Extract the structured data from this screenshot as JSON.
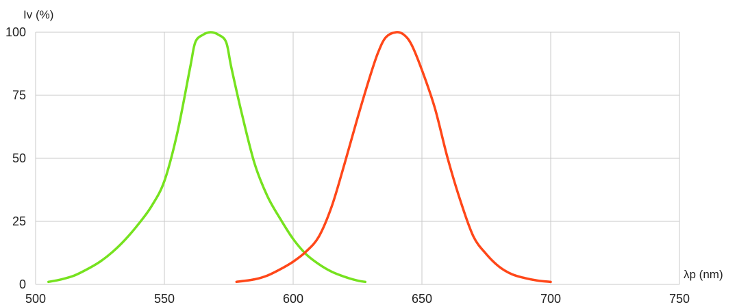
{
  "chart_data": {
    "type": "line",
    "title": "",
    "xlabel": "λp (nm)",
    "ylabel": "Iv (%)",
    "xlim": [
      500,
      750
    ],
    "ylim": [
      0,
      100
    ],
    "x_ticks": [
      "500",
      "550",
      "600",
      "650",
      "700",
      "750"
    ],
    "y_ticks": [
      "0",
      "25",
      "50",
      "75",
      "100"
    ],
    "grid": true,
    "legend": "none",
    "series": [
      {
        "color": "#76e21f",
        "x": [
          505,
          510,
          515,
          520,
          525,
          530,
          535,
          540,
          545,
          550,
          555,
          560,
          562,
          565,
          568,
          571,
          574,
          576,
          580,
          585,
          590,
          595,
          600,
          605,
          610,
          615,
          620,
          625,
          628
        ],
        "y": [
          1,
          2,
          3.5,
          6,
          9,
          13,
          18,
          24,
          31,
          41,
          60,
          86,
          96,
          99,
          100,
          99,
          96,
          86,
          68,
          48,
          35,
          26,
          18,
          12,
          8,
          5,
          3,
          1.5,
          1
        ]
      },
      {
        "color": "#ff4719",
        "x": [
          578,
          585,
          590,
          595,
          600,
          605,
          610,
          615,
          620,
          625,
          630,
          633,
          636,
          640,
          643,
          646,
          650,
          655,
          660,
          665,
          670,
          675,
          680,
          685,
          690,
          695,
          700
        ],
        "y": [
          1,
          2,
          3.5,
          6,
          9,
          13,
          19,
          31,
          48,
          66,
          83,
          92,
          98,
          100,
          99,
          95,
          85,
          70,
          50,
          33,
          19,
          12,
          7,
          4,
          2.5,
          1.5,
          1
        ]
      }
    ]
  }
}
